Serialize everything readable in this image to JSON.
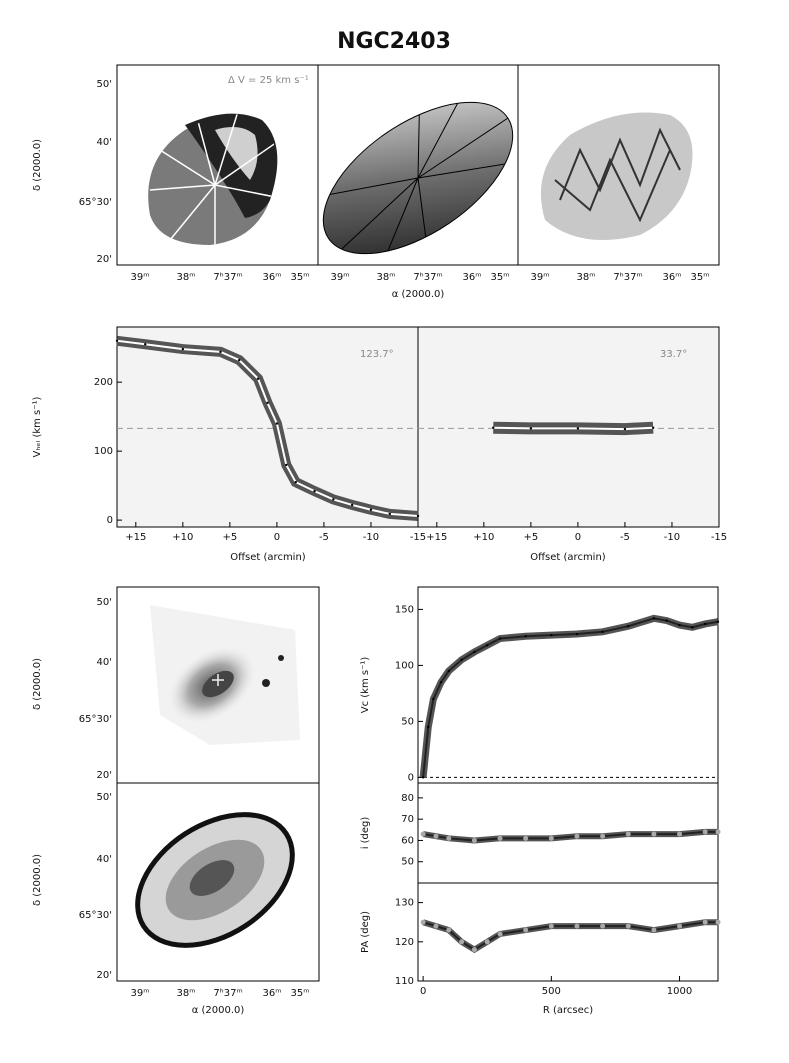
{
  "figure": {
    "title": "NGC2403"
  },
  "maps": {
    "annotation": "Δ V = 25 km s⁻¹",
    "ylabel": "δ (2000.0)",
    "xlabel": "α (2000.0)",
    "yticks_top": [
      "50'",
      "40'",
      "65°30'",
      "20'"
    ],
    "xticks": [
      "39ᵐ",
      "38ᵐ",
      "7ʰ37ᵐ",
      "36ᵐ",
      "35ᵐ"
    ],
    "yticks_bottom_a": [
      "50'",
      "40'",
      "65°30'",
      "20'"
    ],
    "yticks_bottom_b": [
      "50'",
      "40'",
      "65°30'",
      "20'"
    ],
    "xticks_bottom": [
      "39ᵐ",
      "38ᵐ",
      "7ʰ37ᵐ",
      "36ᵐ",
      "35ᵐ"
    ],
    "colors": {
      "dark": "#222222",
      "mid": "#7a7a7a",
      "light": "#d0d0d0"
    }
  },
  "chart_data": [
    {
      "type": "line",
      "panel": "pv-major",
      "title": "123.7°",
      "xlabel": "Offset (arcmin)",
      "ylabel": "Vₕₑₗ (km s⁻¹)",
      "xlim": [
        17,
        -15
      ],
      "ylim": [
        -10,
        280
      ],
      "xticks": [
        "+15",
        "+10",
        "+5",
        "0",
        "-5",
        "-10",
        "-15"
      ],
      "xtick_values": [
        15,
        10,
        5,
        0,
        -5,
        -10,
        -15
      ],
      "yticks": [
        0,
        100,
        200
      ],
      "systemic": 133,
      "series": [
        {
          "x": [
            17,
            14,
            10,
            6,
            4,
            2,
            1,
            0,
            -1,
            -2,
            -4,
            -6,
            -8,
            -10,
            -12,
            -15
          ],
          "values": [
            260,
            255,
            248,
            244,
            232,
            205,
            170,
            140,
            80,
            55,
            42,
            30,
            22,
            15,
            9,
            6
          ]
        }
      ]
    },
    {
      "type": "line",
      "panel": "pv-minor",
      "title": "33.7°",
      "xlabel": "Offset (arcmin)",
      "xlim": [
        17,
        -15
      ],
      "ylim": [
        -10,
        280
      ],
      "xticks": [
        "+15",
        "+10",
        "+5",
        "0",
        "-5",
        "-10",
        "-15"
      ],
      "xtick_values": [
        15,
        10,
        5,
        0,
        -5,
        -10,
        -15
      ],
      "systemic": 133,
      "series": [
        {
          "x": [
            9,
            5,
            0,
            -5,
            -8
          ],
          "values": [
            134,
            133,
            133,
            132,
            134
          ]
        }
      ]
    },
    {
      "type": "line",
      "panel": "rotation-curve",
      "ylabel": "Vᴄ (km s⁻¹)",
      "xlim": [
        -20,
        1150
      ],
      "ylim": [
        -5,
        170
      ],
      "yticks": [
        0,
        50,
        100,
        150
      ],
      "series": [
        {
          "x": [
            0,
            20,
            40,
            70,
            100,
            150,
            200,
            250,
            300,
            400,
            500,
            600,
            700,
            800,
            900,
            950,
            1000,
            1050,
            1100,
            1150
          ],
          "values": [
            0,
            45,
            70,
            85,
            95,
            105,
            112,
            118,
            124,
            126,
            127,
            128,
            130,
            135,
            142,
            140,
            136,
            134,
            137,
            139
          ]
        }
      ]
    },
    {
      "type": "scatter",
      "panel": "inclination",
      "ylabel": "i (deg)",
      "xlim": [
        -20,
        1150
      ],
      "ylim": [
        40,
        87
      ],
      "yticks": [
        50,
        60,
        70,
        80
      ],
      "series": [
        {
          "x": [
            0,
            50,
            100,
            200,
            300,
            400,
            500,
            600,
            700,
            800,
            900,
            1000,
            1100,
            1150
          ],
          "values": [
            63,
            62,
            61,
            60,
            61,
            61,
            61,
            62,
            62,
            63,
            63,
            63,
            64,
            64
          ]
        }
      ]
    },
    {
      "type": "scatter",
      "panel": "position-angle",
      "ylabel": "PA (deg)",
      "xlabel": "R (arcsec)",
      "xlim": [
        -20,
        1150
      ],
      "ylim": [
        110,
        135
      ],
      "yticks": [
        110,
        120,
        130
      ],
      "xticks": [
        0,
        500,
        1000
      ],
      "series": [
        {
          "x": [
            0,
            50,
            100,
            150,
            200,
            250,
            300,
            400,
            500,
            600,
            700,
            800,
            900,
            1000,
            1100,
            1150
          ],
          "values": [
            125,
            124,
            123,
            120,
            118,
            120,
            122,
            123,
            124,
            124,
            124,
            124,
            123,
            124,
            125,
            125
          ]
        }
      ]
    }
  ]
}
